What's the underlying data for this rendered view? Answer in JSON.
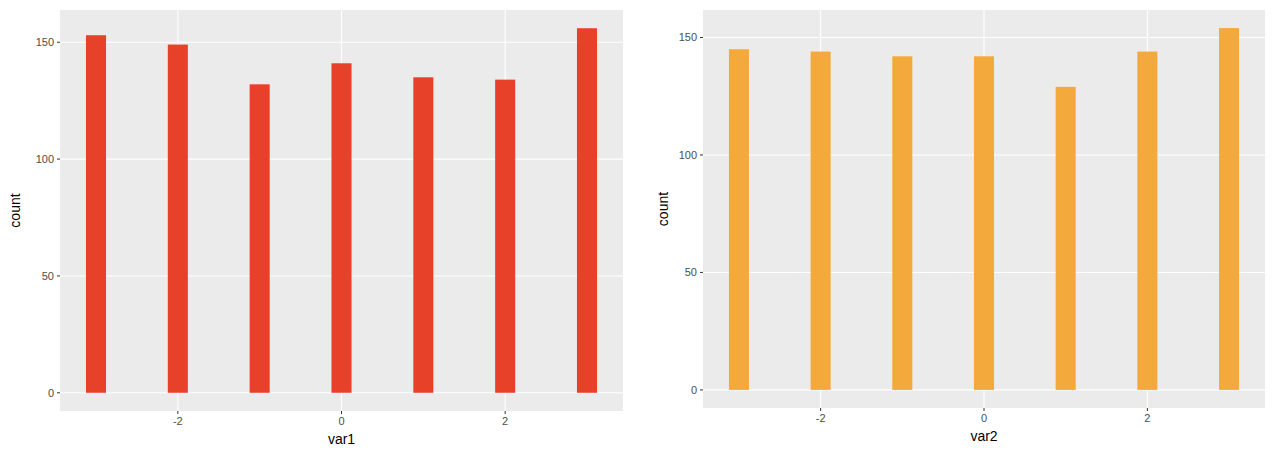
{
  "chart_data": [
    {
      "type": "bar",
      "x": [
        -3,
        -2,
        -1,
        0,
        1,
        2,
        3
      ],
      "values": [
        153,
        149,
        132,
        141,
        135,
        134,
        156
      ],
      "color": "#e8412a",
      "xlim": [
        -3.44,
        3.44
      ],
      "ylim": [
        -7.8,
        163.8
      ],
      "xticks": [
        -2,
        0,
        2
      ],
      "yticks": [
        0,
        50,
        100,
        150
      ],
      "grid": true,
      "xlabel": "var1",
      "ylabel": "count"
    },
    {
      "type": "bar",
      "x": [
        -3,
        -2,
        -1,
        0,
        1,
        2,
        3
      ],
      "values": [
        145,
        144,
        142,
        142,
        129,
        144,
        154
      ],
      "color": "#f4a93c",
      "xlim": [
        -3.44,
        3.44
      ],
      "ylim": [
        -7.7,
        161.7
      ],
      "xticks": [
        -2,
        0,
        2
      ],
      "yticks": [
        0,
        50,
        100,
        150
      ],
      "grid": true,
      "xlabel": "var2",
      "ylabel": "count"
    }
  ]
}
